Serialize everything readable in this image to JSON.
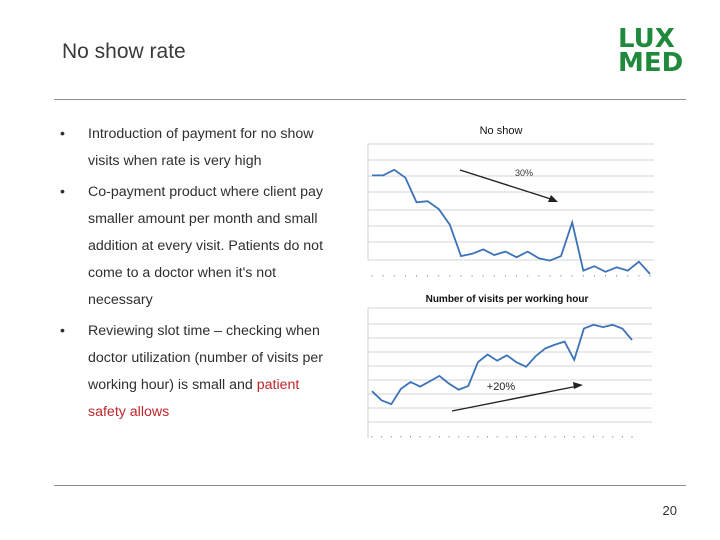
{
  "title": "No show rate",
  "logo": {
    "line1": "LUX",
    "line2": "MED",
    "color": "#1f8a3c"
  },
  "bullets": [
    {
      "text": "Introduction of payment for no show visits when rate is very high"
    },
    {
      "text": "Co-payment product where client pay smaller amount per month and small addition at every visit. Patients do not come to a doctor when it's not necessary"
    },
    {
      "text": "Reviewing slot time – checking when doctor utilization (number of visits per working hour) is small and ",
      "highlight": "patient safety allows"
    }
  ],
  "page_number": "20",
  "chart_data": [
    {
      "type": "line",
      "title": "No show",
      "annotation": "30%",
      "line_color": "#3b72b8",
      "grid": true,
      "values": [
        8.8,
        8.8,
        9.3,
        8.6,
        6.4,
        6.5,
        5.8,
        4.4,
        1.6,
        1.8,
        2.2,
        1.7,
        2.0,
        1.5,
        2.0,
        1.4,
        1.2,
        1.6,
        4.6,
        0.3,
        0.7,
        0.2,
        0.6,
        0.3,
        1.1,
        0.0
      ]
    },
    {
      "type": "line",
      "title": "Number of visits per working hour",
      "annotation": "+20%",
      "line_color": "#3b72b8",
      "grid": true,
      "values": [
        2.2,
        1.0,
        0.5,
        2.5,
        3.4,
        2.8,
        3.5,
        4.2,
        3.2,
        2.4,
        2.9,
        6.0,
        7.0,
        6.2,
        6.9,
        6.0,
        5.4,
        6.8,
        7.8,
        8.3,
        8.7,
        6.3,
        10.4,
        10.9,
        10.6,
        10.9,
        10.4,
        8.9
      ]
    }
  ]
}
